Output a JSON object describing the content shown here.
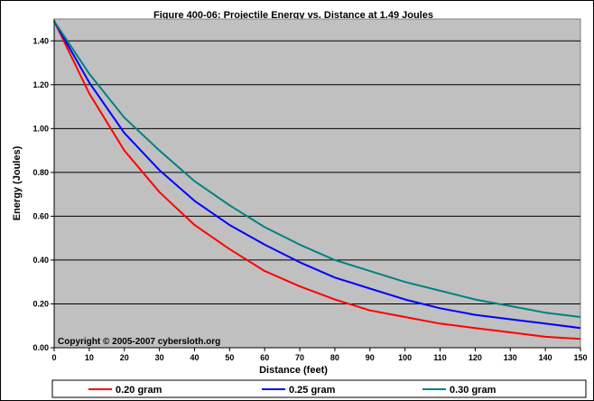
{
  "chart_data": {
    "type": "line",
    "title": "Figure 400-06:  Projectile Energy vs. Distance at 1.49 Joules",
    "xlabel": "Distance (feet)",
    "ylabel": "Energy (Joules)",
    "annotation": "Copyright © 2005-2007 cybersloth.org",
    "xlim": [
      0,
      150
    ],
    "ylim": [
      0,
      1.5
    ],
    "x_ticks": [
      "0",
      "10",
      "20",
      "30",
      "40",
      "50",
      "60",
      "70",
      "80",
      "90",
      "100",
      "110",
      "120",
      "130",
      "140",
      "150"
    ],
    "y_ticks": [
      "0.00",
      "0.20",
      "0.40",
      "0.60",
      "0.80",
      "1.00",
      "1.20",
      "1.40"
    ],
    "grid": "horizontal",
    "legend_position": "bottom",
    "x": [
      0,
      10,
      20,
      30,
      40,
      50,
      60,
      70,
      80,
      90,
      100,
      110,
      120,
      130,
      140,
      150
    ],
    "series": [
      {
        "name": "0.20 gram",
        "color": "#ff0000",
        "values": [
          1.49,
          1.16,
          0.9,
          0.71,
          0.56,
          0.45,
          0.35,
          0.28,
          0.22,
          0.17,
          0.14,
          0.11,
          0.09,
          0.07,
          0.05,
          0.04
        ]
      },
      {
        "name": "0.25 gram",
        "color": "#0000ff",
        "values": [
          1.49,
          1.21,
          0.98,
          0.81,
          0.67,
          0.56,
          0.47,
          0.39,
          0.32,
          0.27,
          0.22,
          0.18,
          0.15,
          0.13,
          0.11,
          0.09
        ]
      },
      {
        "name": "0.30 gram",
        "color": "#008080",
        "values": [
          1.49,
          1.25,
          1.05,
          0.9,
          0.76,
          0.65,
          0.55,
          0.47,
          0.4,
          0.35,
          0.3,
          0.26,
          0.22,
          0.19,
          0.16,
          0.14
        ]
      }
    ]
  }
}
